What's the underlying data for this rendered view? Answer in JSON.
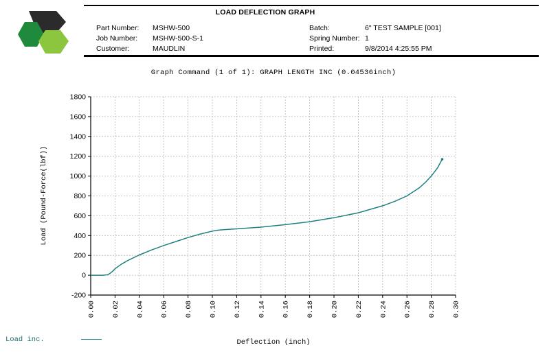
{
  "header": {
    "title": "LOAD DEFLECTION GRAPH",
    "part_number_label": "Part Number:",
    "part_number": "MSHW-500",
    "job_number_label": "Job Number:",
    "job_number": "MSHW-500-S-1",
    "customer_label": "Customer:",
    "customer": "MAUDLIN",
    "batch_label": "Batch:",
    "batch": "6\" TEST SAMPLE [001]",
    "spring_number_label": "Spring Number:",
    "spring_number": "1",
    "printed_label": "Printed:",
    "printed": "9/8/2014 4:25:55 PM"
  },
  "logo": {
    "colors": {
      "dark": "#2b2b2b",
      "green": "#1f8a3b",
      "light_green": "#8cc63f"
    }
  },
  "graph_command": "Graph Command (1 of 1): GRAPH LENGTH INC (0.04536inch)",
  "legend": {
    "label": "Load inc."
  },
  "chart_data": {
    "type": "line",
    "title": "",
    "xlabel": "Deflection (inch)",
    "ylabel": "Load (Pound-Force(lbf))",
    "xlim": [
      0.0,
      0.3
    ],
    "ylim": [
      -200,
      1800
    ],
    "x_ticks": [
      "0.00",
      "0.02",
      "0.04",
      "0.06",
      "0.08",
      "0.10",
      "0.12",
      "0.14",
      "0.16",
      "0.18",
      "0.20",
      "0.22",
      "0.24",
      "0.26",
      "0.28",
      "0.30"
    ],
    "y_ticks": [
      "-200",
      "0",
      "200",
      "400",
      "600",
      "800",
      "1000",
      "1200",
      "1400",
      "1600",
      "1800"
    ],
    "grid": true,
    "line_color": "#1f8080",
    "series": [
      {
        "name": "Load inc.",
        "x": [
          0.0,
          0.01,
          0.014,
          0.016,
          0.018,
          0.02,
          0.025,
          0.03,
          0.04,
          0.05,
          0.06,
          0.07,
          0.08,
          0.09,
          0.1,
          0.105,
          0.11,
          0.12,
          0.14,
          0.16,
          0.18,
          0.2,
          0.22,
          0.24,
          0.25,
          0.26,
          0.27,
          0.275,
          0.28,
          0.285,
          0.289
        ],
        "y": [
          0,
          0,
          5,
          20,
          40,
          65,
          110,
          145,
          205,
          255,
          300,
          340,
          380,
          415,
          445,
          455,
          460,
          468,
          485,
          510,
          540,
          580,
          630,
          700,
          745,
          800,
          880,
          935,
          1000,
          1080,
          1170
        ]
      }
    ]
  }
}
